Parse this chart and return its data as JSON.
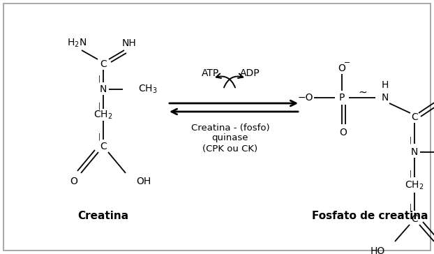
{
  "bg_color": "#ffffff",
  "line_color": "#000000",
  "creatina_label": "Creatina",
  "fosfato_label": "Fosfato de creatina",
  "enzyme_line1": "Creatina - (fosfo)",
  "enzyme_line2": "quinase",
  "enzyme_line3": "(CPK ou CK)",
  "atp_label": "ATP",
  "adp_label": "ADP",
  "figsize": [
    6.22,
    3.64
  ],
  "dpi": 100
}
